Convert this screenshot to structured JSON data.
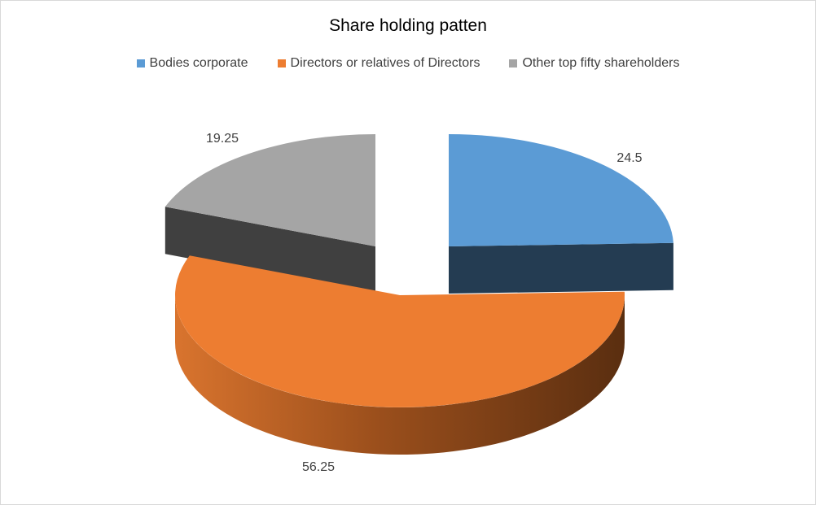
{
  "chart_data": {
    "type": "pie",
    "style": "3d-exploded",
    "title": "Share holding patten",
    "legend_position": "top",
    "slices": [
      {
        "name": "Bodies corporate",
        "value": 24.5,
        "color": "#5b9bd5",
        "side_color": "#243c52"
      },
      {
        "name": "Directors or relatives of Directors",
        "value": 56.25,
        "color": "#ed7d31",
        "side_color": "#7a3d14"
      },
      {
        "name": "Other top fifty shareholders",
        "value": 19.25,
        "color": "#a5a5a5",
        "side_color": "#404040"
      }
    ]
  }
}
